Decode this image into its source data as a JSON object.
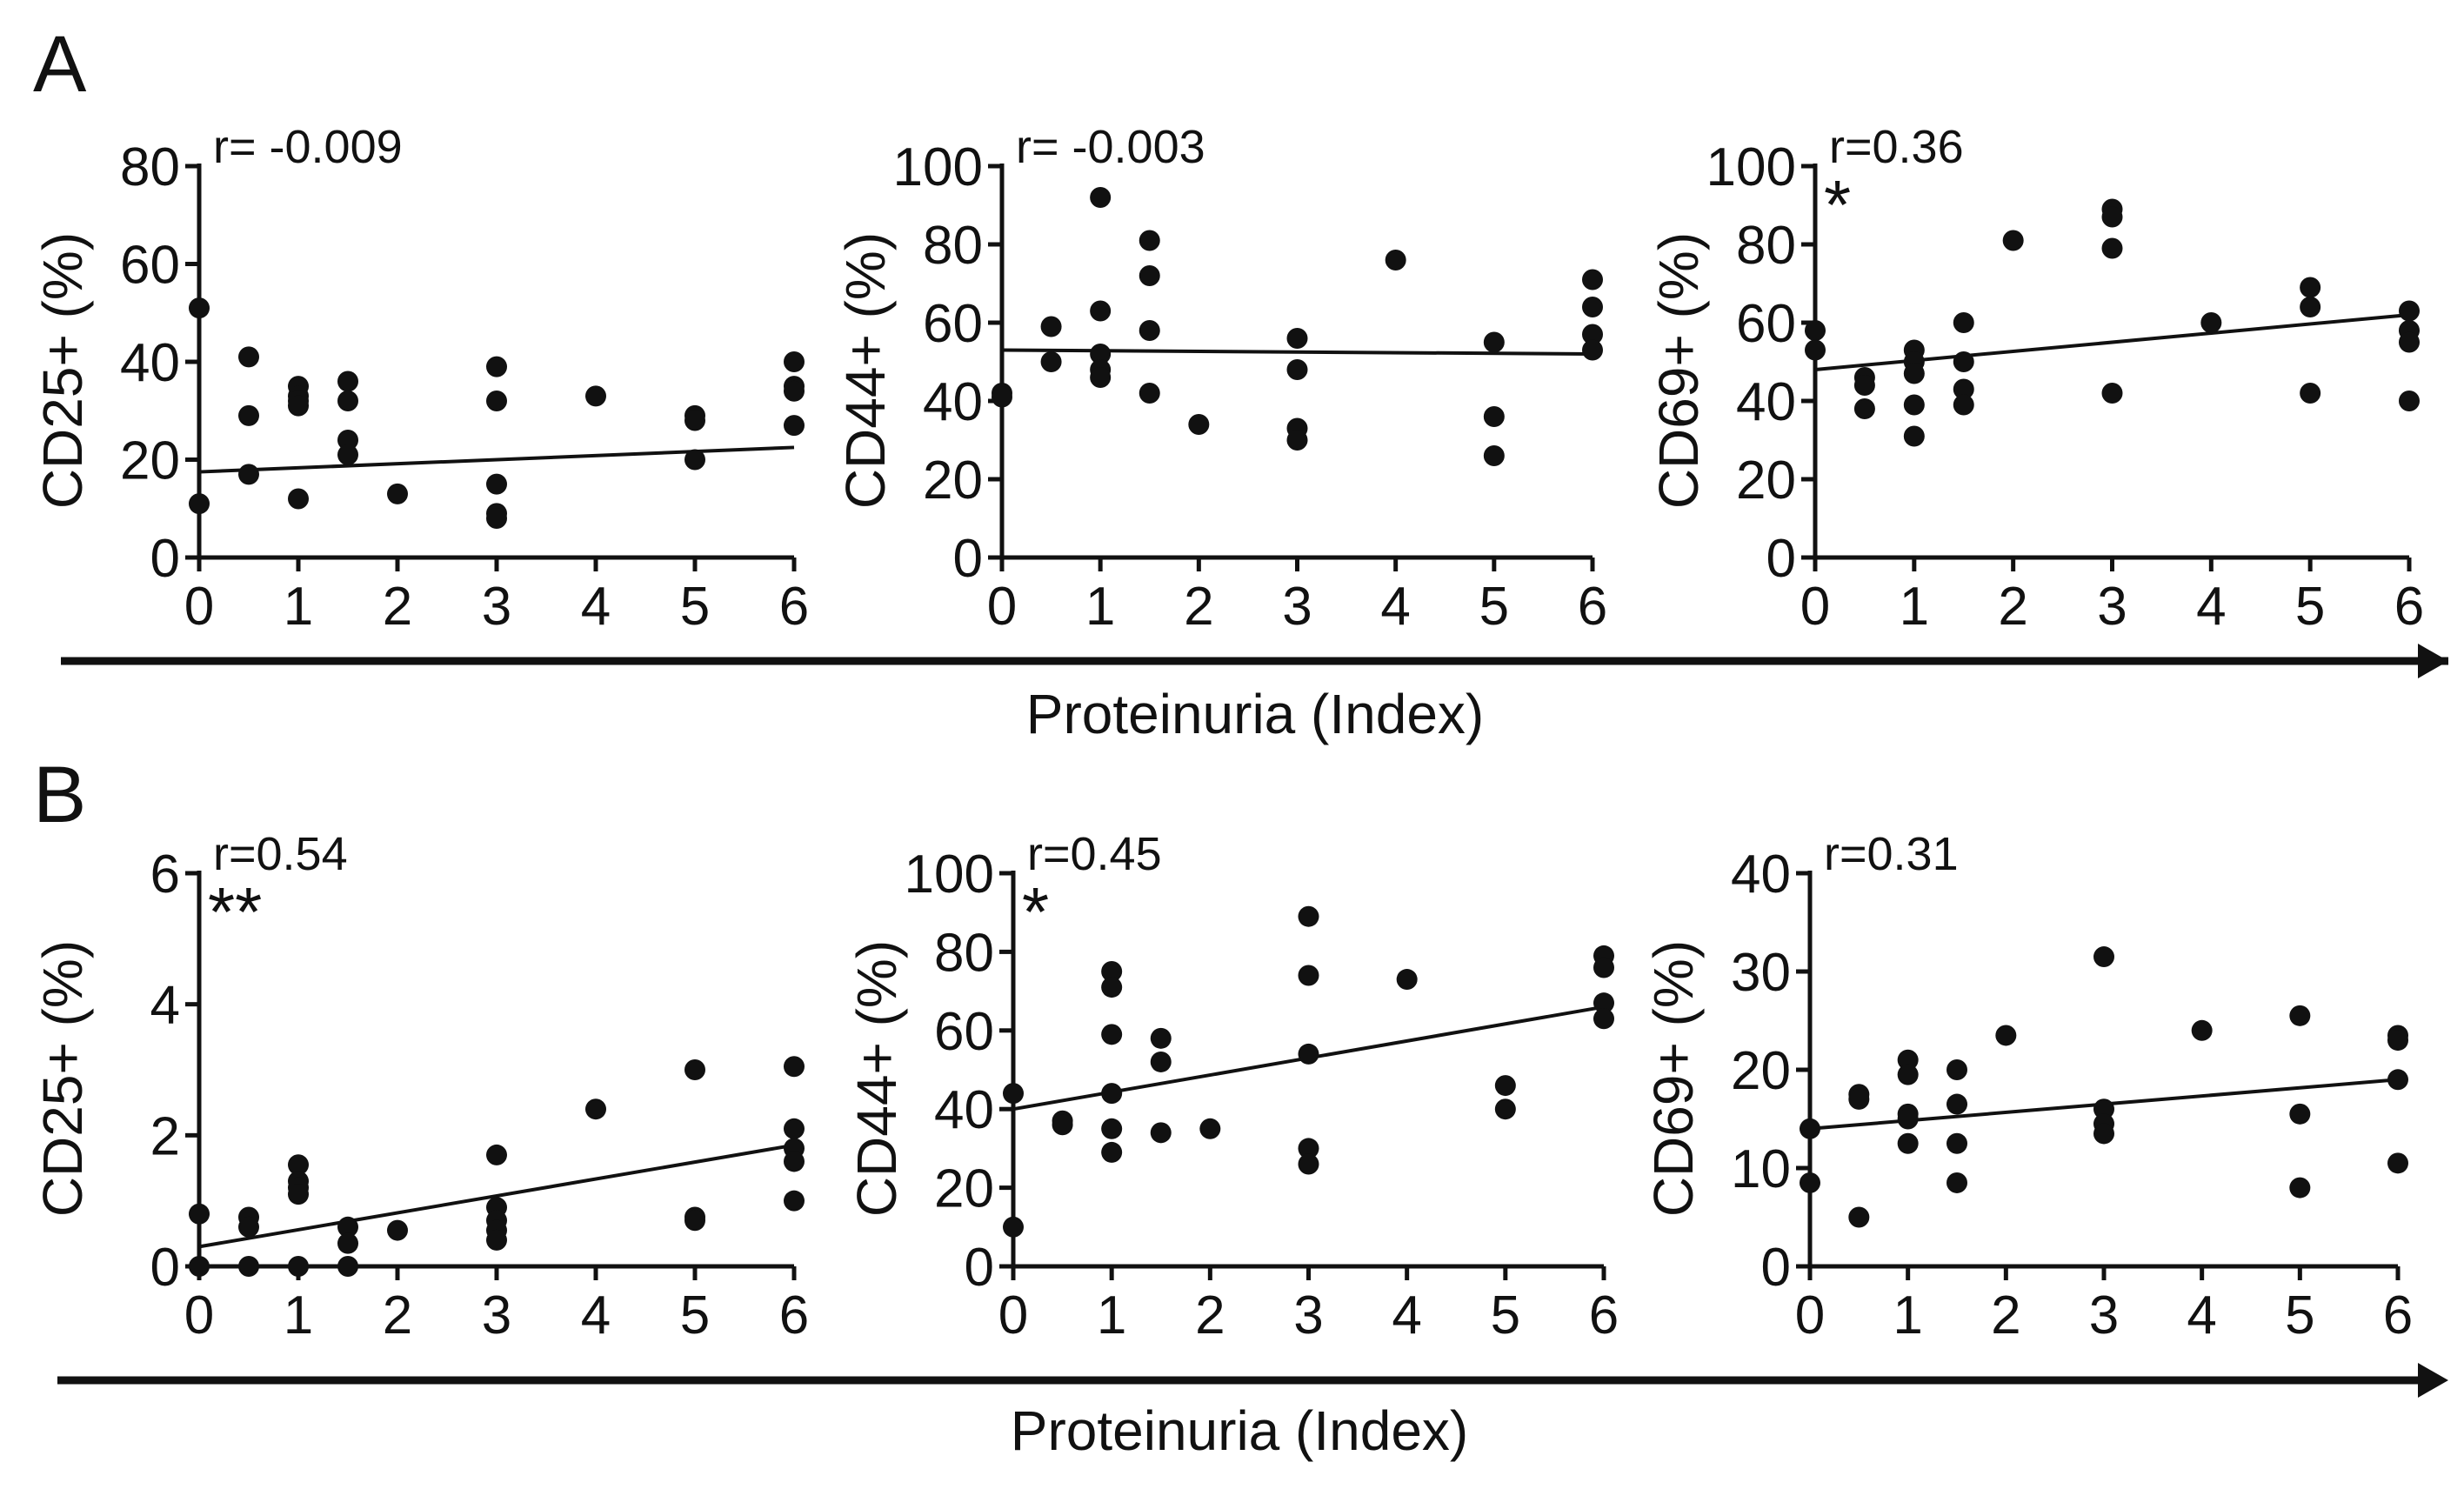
{
  "figure": {
    "panel_labels": [
      "A",
      "B"
    ],
    "xaxis_label": "Proteinuria (Index)"
  },
  "chart_data": [
    {
      "type": "scatter",
      "panel": "A",
      "ylabel": "CD25+ (%)",
      "r_text": "r= -0.009",
      "significance": "",
      "xlim": [
        0,
        6
      ],
      "ylim": [
        0,
        80
      ],
      "xticks": [
        0,
        1,
        2,
        3,
        4,
        5,
        6
      ],
      "yticks": [
        0,
        20,
        40,
        60,
        80
      ],
      "points": [
        [
          0,
          51
        ],
        [
          0,
          11
        ],
        [
          0.5,
          41
        ],
        [
          0.5,
          29
        ],
        [
          0.5,
          17
        ],
        [
          1,
          35
        ],
        [
          1,
          33
        ],
        [
          1,
          32
        ],
        [
          1,
          31
        ],
        [
          1,
          12
        ],
        [
          1.5,
          36
        ],
        [
          1.5,
          32
        ],
        [
          1.5,
          24
        ],
        [
          1.5,
          21
        ],
        [
          2,
          13
        ],
        [
          3,
          39
        ],
        [
          3,
          32
        ],
        [
          3,
          15
        ],
        [
          3,
          9
        ],
        [
          3,
          8
        ],
        [
          4,
          33
        ],
        [
          5,
          29
        ],
        [
          5,
          28
        ],
        [
          5,
          20
        ],
        [
          6,
          40
        ],
        [
          6,
          35
        ],
        [
          6,
          34
        ],
        [
          6,
          27
        ]
      ],
      "trendline": [
        [
          0,
          17.5
        ],
        [
          6,
          22.5
        ]
      ]
    },
    {
      "type": "scatter",
      "panel": "A",
      "ylabel": "CD44+ (%)",
      "r_text": "r= -0.003",
      "significance": "",
      "xlim": [
        0,
        6
      ],
      "ylim": [
        0,
        100
      ],
      "xticks": [
        0,
        1,
        2,
        3,
        4,
        5,
        6
      ],
      "yticks": [
        0,
        20,
        40,
        60,
        80,
        100
      ],
      "points": [
        [
          0,
          42
        ],
        [
          0,
          41
        ],
        [
          0.5,
          59
        ],
        [
          0.5,
          50
        ],
        [
          1,
          92
        ],
        [
          1,
          63
        ],
        [
          1,
          52
        ],
        [
          1,
          48
        ],
        [
          1,
          46
        ],
        [
          1.5,
          81
        ],
        [
          1.5,
          72
        ],
        [
          1.5,
          58
        ],
        [
          1.5,
          42
        ],
        [
          2,
          34
        ],
        [
          3,
          56
        ],
        [
          3,
          48
        ],
        [
          3,
          33
        ],
        [
          3,
          30
        ],
        [
          4,
          76
        ],
        [
          5,
          55
        ],
        [
          5,
          36
        ],
        [
          5,
          26
        ],
        [
          6,
          71
        ],
        [
          6,
          64
        ],
        [
          6,
          57
        ],
        [
          6,
          53
        ]
      ],
      "trendline": [
        [
          0,
          53
        ],
        [
          6,
          52
        ]
      ]
    },
    {
      "type": "scatter",
      "panel": "A",
      "ylabel": "CD69+ (%)",
      "r_text": "r=0.36",
      "significance": "*",
      "xlim": [
        0,
        6
      ],
      "ylim": [
        0,
        100
      ],
      "xticks": [
        0,
        1,
        2,
        3,
        4,
        5,
        6
      ],
      "yticks": [
        0,
        20,
        40,
        60,
        80,
        100
      ],
      "points": [
        [
          0,
          58
        ],
        [
          0,
          53
        ],
        [
          0.5,
          46
        ],
        [
          0.5,
          44
        ],
        [
          0.5,
          38
        ],
        [
          1,
          53
        ],
        [
          1,
          50
        ],
        [
          1,
          47
        ],
        [
          1,
          39
        ],
        [
          1,
          31
        ],
        [
          1.5,
          60
        ],
        [
          1.5,
          50
        ],
        [
          1.5,
          43
        ],
        [
          1.5,
          39
        ],
        [
          2,
          81
        ],
        [
          3,
          89
        ],
        [
          3,
          87
        ],
        [
          3,
          79
        ],
        [
          3,
          42
        ],
        [
          4,
          60
        ],
        [
          5,
          69
        ],
        [
          5,
          64
        ],
        [
          5,
          42
        ],
        [
          6,
          63
        ],
        [
          6,
          58
        ],
        [
          6,
          55
        ],
        [
          6,
          40
        ]
      ],
      "trendline": [
        [
          0,
          48
        ],
        [
          6,
          62
        ]
      ]
    },
    {
      "type": "scatter",
      "panel": "B",
      "ylabel": "CD25+ (%)",
      "r_text": "r=0.54",
      "significance": "**",
      "xlim": [
        0,
        6
      ],
      "ylim": [
        0,
        6
      ],
      "xticks": [
        0,
        1,
        2,
        3,
        4,
        5,
        6
      ],
      "yticks": [
        0,
        2,
        4,
        6
      ],
      "points": [
        [
          0,
          0.8
        ],
        [
          0,
          0
        ],
        [
          0.5,
          0.75
        ],
        [
          0.5,
          0.6
        ],
        [
          0.5,
          0
        ],
        [
          1,
          1.55
        ],
        [
          1,
          1.3
        ],
        [
          1,
          1.2
        ],
        [
          1,
          1.1
        ],
        [
          1,
          0
        ],
        [
          1.5,
          0.6
        ],
        [
          1.5,
          0.35
        ],
        [
          1.5,
          0
        ],
        [
          2,
          0.55
        ],
        [
          3,
          1.7
        ],
        [
          3,
          0.9
        ],
        [
          3,
          0.7
        ],
        [
          3,
          0.55
        ],
        [
          3,
          0.4
        ],
        [
          4,
          2.4
        ],
        [
          5,
          3.0
        ],
        [
          5,
          0.75
        ],
        [
          5,
          0.7
        ],
        [
          6,
          3.05
        ],
        [
          6,
          2.1
        ],
        [
          6,
          1.8
        ],
        [
          6,
          1.6
        ],
        [
          6,
          1.0
        ]
      ],
      "trendline": [
        [
          0,
          0.3
        ],
        [
          6,
          1.85
        ]
      ]
    },
    {
      "type": "scatter",
      "panel": "B",
      "ylabel": "CD44+ (%)",
      "r_text": "r=0.45",
      "significance": "*",
      "xlim": [
        0,
        6
      ],
      "ylim": [
        0,
        100
      ],
      "xticks": [
        0,
        1,
        2,
        3,
        4,
        5,
        6
      ],
      "yticks": [
        0,
        20,
        40,
        60,
        80,
        100
      ],
      "points": [
        [
          0,
          44
        ],
        [
          0,
          10
        ],
        [
          0.5,
          37
        ],
        [
          0.5,
          36
        ],
        [
          1,
          75
        ],
        [
          1,
          71
        ],
        [
          1,
          59
        ],
        [
          1,
          44
        ],
        [
          1,
          35
        ],
        [
          1,
          29
        ],
        [
          1.5,
          58
        ],
        [
          1.5,
          52
        ],
        [
          1.5,
          34
        ],
        [
          2,
          35
        ],
        [
          3,
          89
        ],
        [
          3,
          74
        ],
        [
          3,
          54
        ],
        [
          3,
          30
        ],
        [
          3,
          26
        ],
        [
          4,
          73
        ],
        [
          5,
          46
        ],
        [
          5,
          40
        ],
        [
          6,
          79
        ],
        [
          6,
          76
        ],
        [
          6,
          67
        ],
        [
          6,
          63
        ]
      ],
      "trendline": [
        [
          0,
          40
        ],
        [
          6,
          66
        ]
      ]
    },
    {
      "type": "scatter",
      "panel": "B",
      "ylabel": "CD69+ (%)",
      "r_text": "r=0.31",
      "significance": "",
      "xlim": [
        0,
        6
      ],
      "ylim": [
        0,
        40
      ],
      "xticks": [
        0,
        1,
        2,
        3,
        4,
        5,
        6
      ],
      "yticks": [
        0,
        10,
        20,
        30,
        40
      ],
      "points": [
        [
          0,
          14
        ],
        [
          0,
          8.5
        ],
        [
          0.5,
          17.5
        ],
        [
          0.5,
          17
        ],
        [
          0.5,
          5
        ],
        [
          1,
          21
        ],
        [
          1,
          19.5
        ],
        [
          1,
          15.5
        ],
        [
          1,
          15
        ],
        [
          1,
          12.5
        ],
        [
          1.5,
          20
        ],
        [
          1.5,
          16.5
        ],
        [
          1.5,
          12.5
        ],
        [
          1.5,
          8.5
        ],
        [
          2,
          23.5
        ],
        [
          3,
          31.5
        ],
        [
          3,
          16
        ],
        [
          3,
          14.5
        ],
        [
          3,
          13.5
        ],
        [
          4,
          24
        ],
        [
          5,
          25.5
        ],
        [
          5,
          15.5
        ],
        [
          5,
          8
        ],
        [
          6,
          23.5
        ],
        [
          6,
          23
        ],
        [
          6,
          19
        ],
        [
          6,
          10.5
        ]
      ],
      "trendline": [
        [
          0,
          14
        ],
        [
          6,
          19
        ]
      ]
    }
  ]
}
